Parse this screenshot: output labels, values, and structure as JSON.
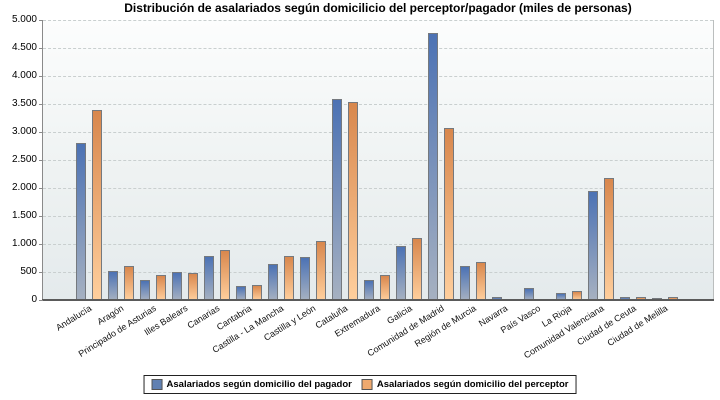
{
  "title": "Distribución de asalariados según domicilicio del perceptor/pagador (miles de personas)",
  "legend": {
    "series1": "Asalariados según domicilio del pagador",
    "series2": "Asalariados según domicilio del perceptor"
  },
  "colors": {
    "series1_top": "#4C72B4",
    "series1_bottom": "#A6B1C1",
    "series2_top": "#D8874D",
    "series2_bottom": "#FFCF9D",
    "bar_border": "#75797E",
    "legend_swatch1": "#6080B2",
    "legend_swatch2": "#EFA96E",
    "plot_bg_top": "#FCFDFD",
    "plot_bg_bottom": "#E4EAEC"
  },
  "chart_data": {
    "type": "bar",
    "title": "Distribución de asalariados según domicilicio del perceptor/pagador (miles de personas)",
    "categories": [
      "Andalucía",
      "Aragón",
      "Principado de Asturias",
      "Illes Balears",
      "Canarias",
      "Cantabria",
      "Castilla - La Mancha",
      "Castilla y León",
      "Cataluña",
      "Extremadura",
      "Galicia",
      "Comunidad de Madrid",
      "Región de Murcia",
      "Navarra",
      "País Vasco",
      "La Rioja",
      "Comunidad Valenciana",
      "Ciudad de Ceuta",
      "Ciudad de Melilla"
    ],
    "series": [
      {
        "name": "Asalariados según domicilio del pagador",
        "values": [
          2800,
          520,
          350,
          500,
          780,
          250,
          640,
          770,
          3590,
          350,
          960,
          4760,
          600,
          60,
          210,
          120,
          1940,
          55,
          35
        ]
      },
      {
        "name": "Asalariados según domicilio del perceptor",
        "values": [
          3390,
          610,
          450,
          490,
          900,
          270,
          790,
          1050,
          3540,
          440,
          1100,
          3080,
          670,
          15,
          15,
          160,
          2170,
          45,
          50
        ]
      }
    ],
    "xlabel": "",
    "ylabel": "",
    "ylim": [
      0,
      5000
    ],
    "ytick_step": 500,
    "ytick_labels": [
      "0",
      "500",
      "1.000",
      "1.500",
      "2.000",
      "2.500",
      "3.000",
      "3.500",
      "4.000",
      "4.500",
      "5.000"
    ],
    "grid": "horizontal-dashed",
    "legend_position": "bottom"
  }
}
